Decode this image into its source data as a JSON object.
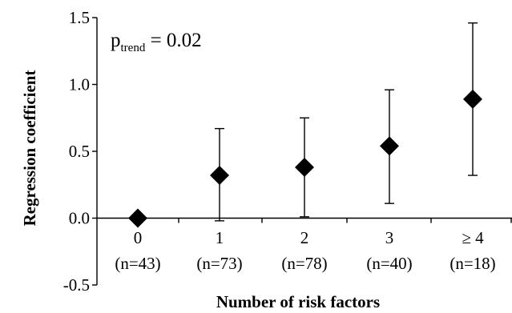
{
  "chart_data": {
    "type": "scatter",
    "title": "",
    "xlabel": "Number of risk factors",
    "ylabel": "Regression coefficient",
    "ylim": [
      -0.5,
      1.5
    ],
    "yticks": [
      "-0.5",
      "0.0",
      "0.5",
      "1.0",
      "1.5"
    ],
    "grid": false,
    "legend": "none",
    "marker": "diamond",
    "categories": [
      {
        "label": "0",
        "n": "(n=43)"
      },
      {
        "label": "1",
        "n": "(n=73)"
      },
      {
        "label": "2",
        "n": "(n=78)"
      },
      {
        "label": "3",
        "n": "(n=40)"
      },
      {
        "label": "≥ 4",
        "n": "(n=18)"
      }
    ],
    "values": [
      0.0,
      0.32,
      0.38,
      0.54,
      0.89
    ],
    "error_lower": [
      null,
      -0.02,
      0.01,
      0.11,
      0.32
    ],
    "error_upper": [
      null,
      0.67,
      0.75,
      0.96,
      1.46
    ],
    "annotation": {
      "p_label": "p",
      "p_subscript": "trend",
      "p_value": " = 0.02"
    },
    "colors": {
      "marker": "#000000",
      "axis": "#000000"
    }
  }
}
